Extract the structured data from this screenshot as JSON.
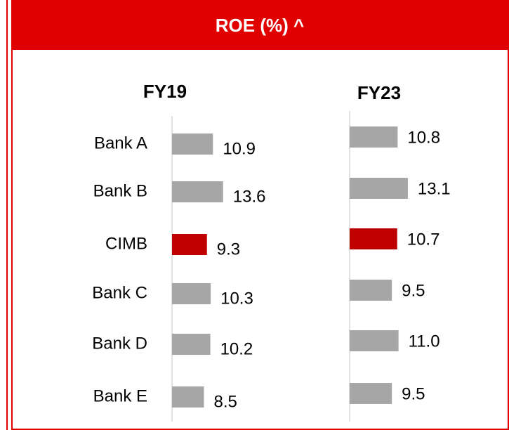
{
  "title": "ROE (%) ^",
  "chart_data": [
    {
      "type": "bar",
      "title": "FY19",
      "categories": [
        "Bank A",
        "Bank B",
        "CIMB",
        "Bank C",
        "Bank D",
        "Bank E"
      ],
      "values": [
        10.9,
        13.6,
        9.3,
        10.3,
        10.2,
        8.5
      ],
      "colors": [
        "#a6a6a6",
        "#a6a6a6",
        "#c00000",
        "#a6a6a6",
        "#a6a6a6",
        "#a6a6a6"
      ]
    },
    {
      "type": "bar",
      "title": "FY23",
      "values": [
        10.8,
        13.1,
        10.7,
        9.5,
        11.0,
        9.5
      ],
      "value_labels": [
        "10.8",
        "13.1",
        "10.7",
        "9.5",
        "11.0",
        "9.5"
      ],
      "colors": [
        "#a6a6a6",
        "#a6a6a6",
        "#c00000",
        "#a6a6a6",
        "#a6a6a6",
        "#a6a6a6"
      ]
    }
  ]
}
